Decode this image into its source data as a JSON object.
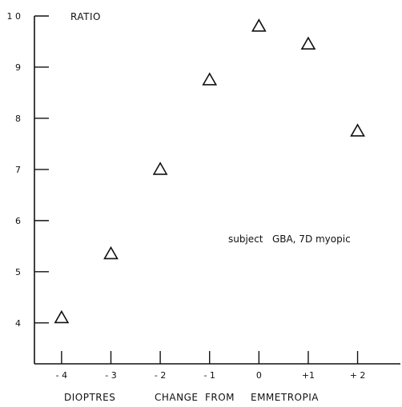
{
  "chart_data": {
    "type": "scatter",
    "title": "",
    "ylabel": "RATIO",
    "xlabel_parts": [
      "DIOPTRES",
      "CHANGE",
      "FROM",
      "EMMETROPIA"
    ],
    "annotation": "subject   GBA, 7D myopic",
    "x_ticks": [
      {
        "value": -4,
        "label": "- 4"
      },
      {
        "value": -3,
        "label": "- 3"
      },
      {
        "value": -2,
        "label": "- 2"
      },
      {
        "value": -1,
        "label": "- 1"
      },
      {
        "value": 0,
        "label": "0"
      },
      {
        "value": 1,
        "label": "+1"
      },
      {
        "value": 2,
        "label": "+ 2"
      }
    ],
    "y_ticks": [
      {
        "value": 4,
        "label": "4"
      },
      {
        "value": 5,
        "label": "5"
      },
      {
        "value": 6,
        "label": "6"
      },
      {
        "value": 7,
        "label": "7"
      },
      {
        "value": 8,
        "label": "8"
      },
      {
        "value": 9,
        "label": "9"
      },
      {
        "value": 10,
        "label": "1 0"
      }
    ],
    "xlim": [
      -4.55,
      2.9
    ],
    "ylim": [
      3.2,
      10.0
    ],
    "marker": "open-triangle",
    "points": [
      {
        "x": -4,
        "y": 4.1
      },
      {
        "x": -3,
        "y": 5.35
      },
      {
        "x": -2,
        "y": 7.0
      },
      {
        "x": -1,
        "y": 8.75
      },
      {
        "x": 0,
        "y": 9.8
      },
      {
        "x": 1,
        "y": 9.45
      },
      {
        "x": 2,
        "y": 7.75
      }
    ]
  }
}
